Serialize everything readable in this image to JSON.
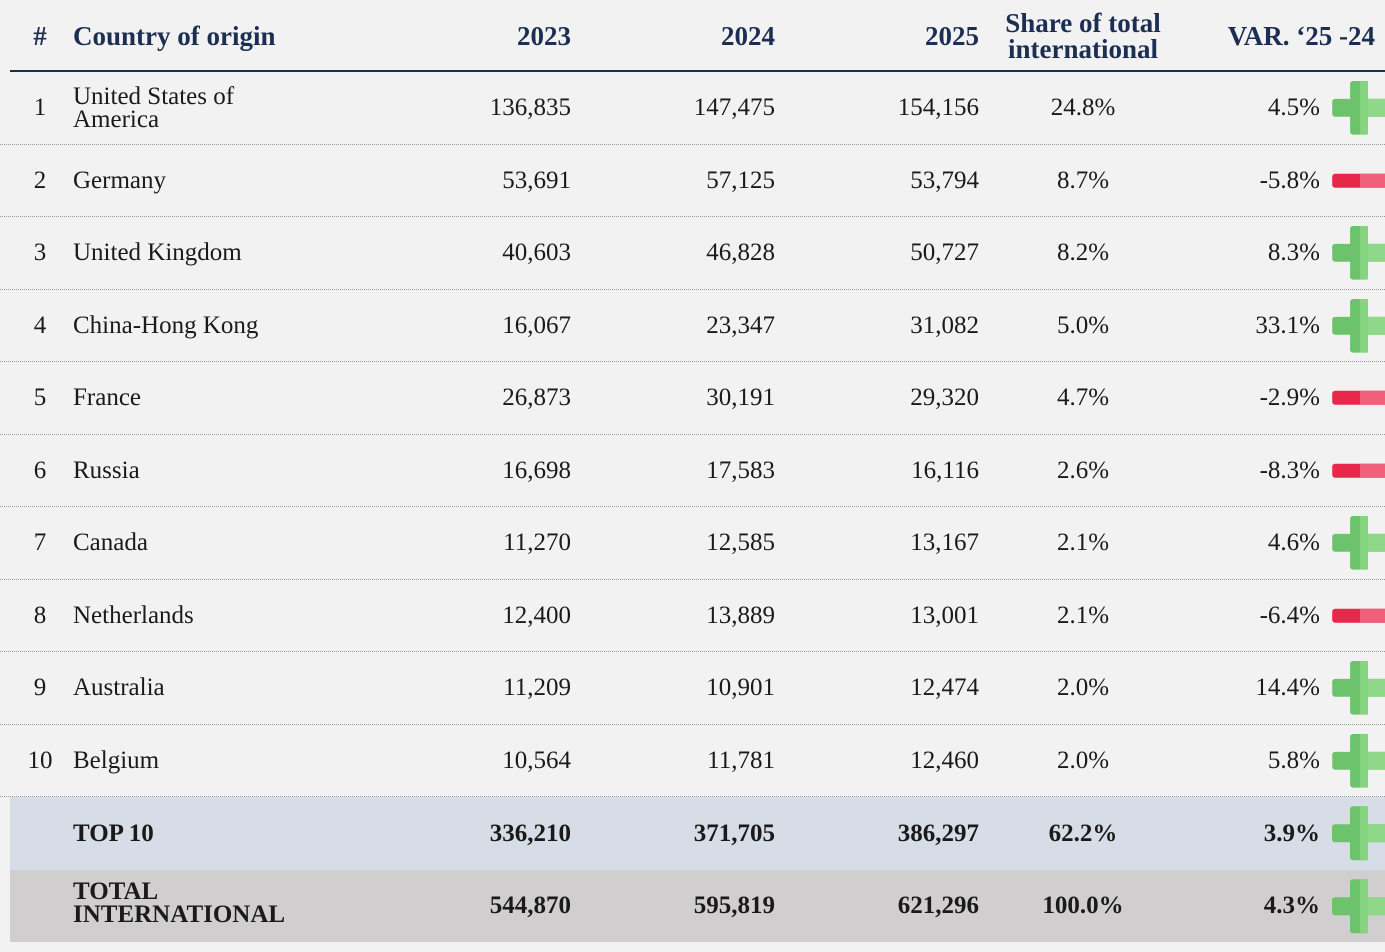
{
  "table": {
    "columns": [
      "#",
      "Country of origin",
      "2023",
      "2024",
      "2025",
      "Share of total international",
      "VAR. ‘25 -24"
    ],
    "rows": [
      [
        "1",
        "United States of America",
        "136,835",
        "147,475",
        "154,156",
        "24.8%",
        "4.5%"
      ],
      [
        "2",
        "Germany",
        "53,691",
        "57,125",
        "53,794",
        "8.7%",
        "-5.8%"
      ],
      [
        "3",
        "United Kingdom",
        "40,603",
        "46,828",
        "50,727",
        "8.2%",
        "8.3%"
      ],
      [
        "4",
        "China-Hong Kong",
        "16,067",
        "23,347",
        "31,082",
        "5.0%",
        "33.1%"
      ],
      [
        "5",
        "France",
        "26,873",
        "30,191",
        "29,320",
        "4.7%",
        "-2.9%"
      ],
      [
        "6",
        "Russia",
        "16,698",
        "17,583",
        "16,116",
        "2.6%",
        "-8.3%"
      ],
      [
        "7",
        "Canada",
        "11,270",
        "12,585",
        "13,167",
        "2.1%",
        "4.6%"
      ],
      [
        "8",
        "Netherlands",
        "12,400",
        "13,889",
        "13,001",
        "2.1%",
        "-6.4%"
      ],
      [
        "9",
        "Australia",
        "11,209",
        "10,901",
        "12,474",
        "2.0%",
        "14.4%"
      ],
      [
        "10",
        "Belgium",
        "10,564",
        "11,781",
        "12,460",
        "2.0%",
        "5.8%"
      ]
    ],
    "summary": [
      [
        "TOP 10",
        "336,210",
        "371,705",
        "386,297",
        "62.2%",
        "3.9%"
      ],
      [
        "TOTAL INTERNATIONAL",
        "544,870",
        "595,819",
        "621,296",
        "100.0%",
        "4.3%"
      ]
    ]
  }
}
